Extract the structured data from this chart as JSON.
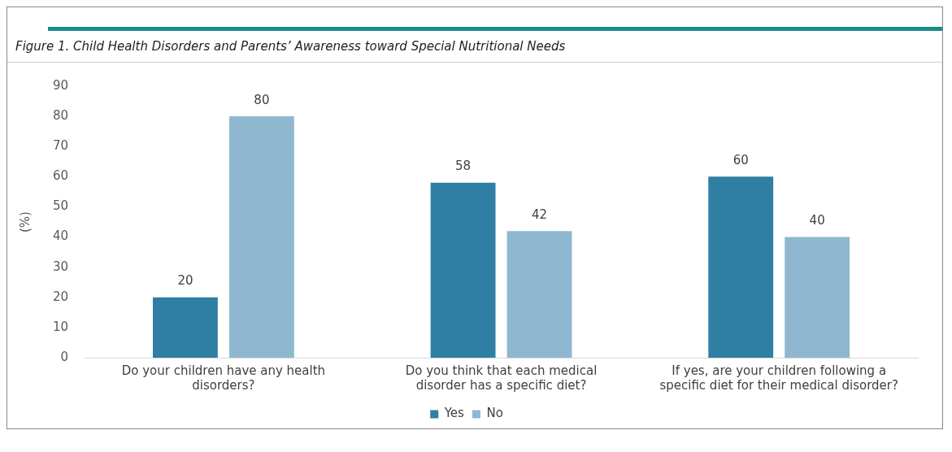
{
  "chart_data": {
    "type": "bar",
    "title": "Figure 1. Child Health Disorders and Parents’ Awareness toward Special Nutritional Needs",
    "ylabel": "(%)",
    "categories": [
      "Do your children have any health disorders?",
      "Do you think that each medical disorder has a specific diet?",
      "If yes, are your children following a specific diet for their medical disorder?"
    ],
    "series": [
      {
        "name": "Yes",
        "color": "#2e7fa3",
        "values": [
          20,
          58,
          60
        ]
      },
      {
        "name": "No",
        "color": "#8fb8d0",
        "values": [
          80,
          42,
          40
        ]
      }
    ],
    "ylim": [
      0,
      90
    ],
    "yticks": [
      0,
      10,
      20,
      30,
      40,
      50,
      60,
      70,
      80,
      90
    ],
    "grid": false,
    "legend": "bottom",
    "data_labels": true
  }
}
